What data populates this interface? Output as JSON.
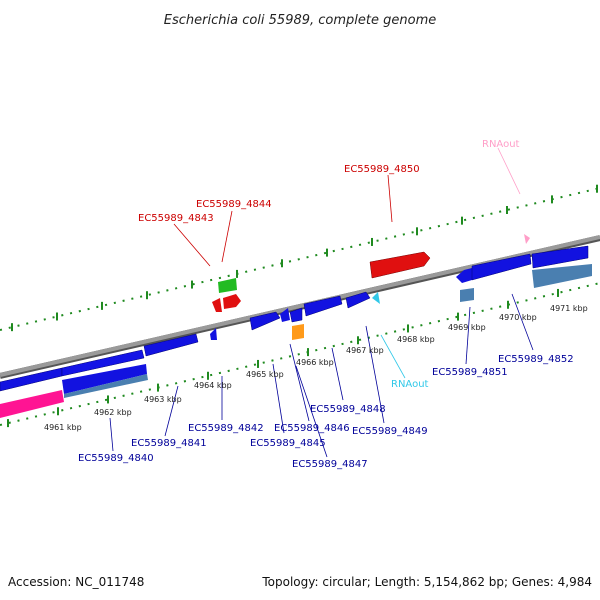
{
  "title": "Escherichia coli 55989, complete genome",
  "footer": {
    "accession": "Accession: NC_011748",
    "summary": "Topology: circular; Length: 5,154,862 bp; Genes: 4,984"
  },
  "colors": {
    "backbone": "#808080",
    "tick": "#1f8a1f",
    "cds": "#1212e0",
    "cds_reverse": "#4a7fb0",
    "pseudo": "#ff1493",
    "rna": "#31c8e8",
    "rnaout": "#ff9ec8",
    "top_gene": "#e01010",
    "green_gene": "#22bb22",
    "orange_gene": "#ff9a1a",
    "top_label": "#cc0000",
    "bottom_label": "#000099"
  },
  "scale": {
    "ticks": [
      {
        "label": "4961 kbp"
      },
      {
        "label": "4962 kbp"
      },
      {
        "label": "4963 kbp"
      },
      {
        "label": "4964 kbp"
      },
      {
        "label": "4965 kbp"
      },
      {
        "label": "4966 kbp"
      },
      {
        "label": "4967 kbp"
      },
      {
        "label": "4968 kbp"
      },
      {
        "label": "4969 kbp"
      },
      {
        "label": "4970 kbp"
      },
      {
        "label": "4971 kbp"
      }
    ]
  },
  "labels_top": [
    {
      "text": "EC55989_4843",
      "color": "top_label"
    },
    {
      "text": "EC55989_4844",
      "color": "top_label"
    },
    {
      "text": "EC55989_4850",
      "color": "top_label"
    },
    {
      "text": "RNAout",
      "color": "rnaout"
    }
  ],
  "labels_bottom": [
    {
      "text": "EC55989_4840",
      "color": "bottom_label"
    },
    {
      "text": "EC55989_4841",
      "color": "bottom_label"
    },
    {
      "text": "EC55989_4842",
      "color": "bottom_label"
    },
    {
      "text": "EC55989_4845",
      "color": "bottom_label"
    },
    {
      "text": "EC55989_4846",
      "color": "bottom_label"
    },
    {
      "text": "EC55989_4847",
      "color": "bottom_label"
    },
    {
      "text": "EC55989_4848",
      "color": "bottom_label"
    },
    {
      "text": "EC55989_4849",
      "color": "bottom_label"
    },
    {
      "text": "RNAout",
      "color": "rna"
    },
    {
      "text": "EC55989_4851",
      "color": "bottom_label"
    },
    {
      "text": "EC55989_4852",
      "color": "bottom_label"
    }
  ]
}
